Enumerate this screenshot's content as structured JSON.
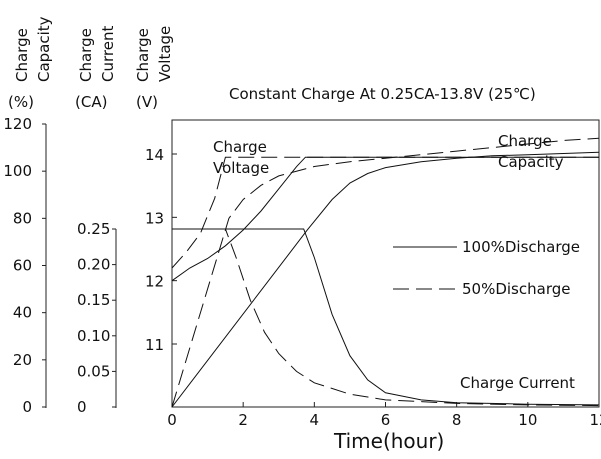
{
  "chart_data": {
    "type": "line",
    "title": "Constant Charge At 0.25CA-13.8V (25℃)",
    "xlabel": "Time(hour)",
    "xlim": [
      0,
      12
    ],
    "x_ticks": [
      "0",
      "2",
      "4",
      "6",
      "8",
      "10",
      "12"
    ],
    "axes": [
      {
        "id": "capacity",
        "label_lines": [
          "Charge",
          "Capacity"
        ],
        "unit": "(%)",
        "range": [
          0,
          120
        ],
        "ticks": [
          "0",
          "20",
          "40",
          "60",
          "80",
          "100",
          "120"
        ]
      },
      {
        "id": "current",
        "label_lines": [
          "Charge",
          "Current"
        ],
        "unit": "(CA)",
        "range": [
          0,
          0.25
        ],
        "ticks": [
          "0",
          "0.05",
          "0.10",
          "0.15",
          "0.20",
          "0.25"
        ]
      },
      {
        "id": "voltage",
        "label_lines": [
          "Charge",
          "Voltage"
        ],
        "unit": "(V)",
        "range": [
          10,
          14.5
        ],
        "ticks": [
          "11",
          "12",
          "13",
          "14"
        ]
      }
    ],
    "curve_labels": {
      "voltage": [
        "Charge",
        "Voltage"
      ],
      "capacity": [
        "Charge",
        "Capacity"
      ],
      "current": "Charge Current"
    },
    "legend": {
      "placement": "center-right",
      "entries": [
        {
          "label": "100%Discharge",
          "style": "solid"
        },
        {
          "label": "50%Discharge",
          "style": "dashed"
        }
      ]
    },
    "series": [
      {
        "curve": "voltage",
        "discharge": "100%",
        "style": "solid",
        "axis": "voltage",
        "x": [
          0,
          0.5,
          1.0,
          1.5,
          2.0,
          2.5,
          3.0,
          3.5,
          3.75,
          12
        ],
        "y": [
          12.0,
          12.2,
          12.35,
          12.55,
          12.8,
          13.1,
          13.45,
          13.8,
          13.95,
          13.95
        ]
      },
      {
        "curve": "voltage",
        "discharge": "50%",
        "style": "dashed",
        "axis": "voltage",
        "x": [
          0,
          0.4,
          0.8,
          1.2,
          1.5,
          12
        ],
        "y": [
          12.2,
          12.45,
          12.75,
          13.3,
          13.95,
          13.95
        ]
      },
      {
        "curve": "capacity",
        "discharge": "100%",
        "style": "solid",
        "axis": "capacity",
        "x": [
          0,
          3.8,
          4.5,
          5.0,
          5.5,
          6.0,
          7.0,
          8.0,
          9.0,
          10.0,
          11.0,
          12.0
        ],
        "y": [
          0,
          75,
          88,
          95,
          99,
          101.5,
          104,
          105.5,
          106.5,
          107,
          107.5,
          108
        ]
      },
      {
        "curve": "capacity",
        "discharge": "50%",
        "style": "dashed",
        "axis": "capacity",
        "x": [
          0,
          1.6,
          2.0,
          2.5,
          3.0,
          4.0,
          5.0,
          6.0,
          7.0,
          8.0,
          9.0,
          10.0,
          11.0,
          12.0
        ],
        "y": [
          0,
          80,
          88,
          94,
          98,
          102,
          104,
          105.5,
          107,
          108.5,
          110,
          111.5,
          113,
          114
        ]
      },
      {
        "curve": "current",
        "discharge": "100%",
        "style": "solid",
        "axis": "current",
        "x": [
          0,
          3.7,
          4.0,
          4.5,
          5.0,
          5.5,
          6.0,
          7.0,
          8.0,
          10.0,
          12.0
        ],
        "y": [
          0.25,
          0.25,
          0.21,
          0.13,
          0.072,
          0.038,
          0.02,
          0.01,
          0.006,
          0.004,
          0.003
        ]
      },
      {
        "curve": "current",
        "discharge": "50%",
        "style": "dashed",
        "axis": "current",
        "x": [
          0,
          1.5,
          1.8,
          2.2,
          2.6,
          3.0,
          3.5,
          4.0,
          5.0,
          6.0,
          8.0,
          10.0,
          12.0
        ],
        "y": [
          0.25,
          0.25,
          0.21,
          0.15,
          0.105,
          0.075,
          0.05,
          0.034,
          0.018,
          0.01,
          0.005,
          0.003,
          0.002
        ]
      }
    ]
  }
}
